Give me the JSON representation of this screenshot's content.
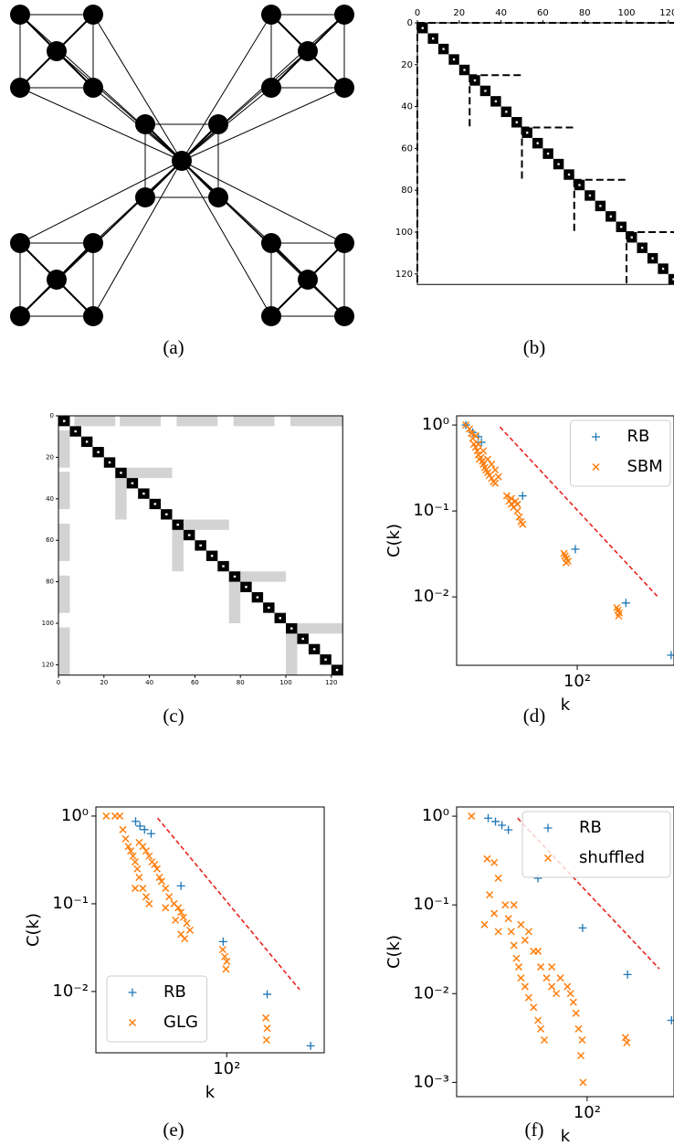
{
  "captions": [
    "(a)",
    "(b)",
    "(c)",
    "(d)",
    "(e)",
    "(f)"
  ],
  "chart_data": [
    {
      "type": "matrix",
      "tick_side": "top",
      "xlim": [
        0,
        125
      ],
      "ylim": [
        0,
        125
      ],
      "xticks": [
        0,
        20,
        40,
        60,
        80,
        100,
        120
      ],
      "yticks": [
        0,
        20,
        40,
        60,
        80,
        100,
        120
      ],
      "block_style": "dashed"
    },
    {
      "type": "matrix",
      "tick_side": "bottom",
      "xlim": [
        0,
        125
      ],
      "ylim": [
        0,
        125
      ],
      "xticks": [
        0,
        20,
        40,
        60,
        80,
        100,
        120
      ],
      "yticks": [
        0,
        20,
        40,
        60,
        80,
        100,
        120
      ],
      "block_style": "gray"
    },
    {
      "type": "scatter",
      "log_x": true,
      "log_y": true,
      "x_label": "k",
      "y_label": "C(k)",
      "legend": "upper right",
      "xlim": [
        3.9,
        1350
      ],
      "ylim": [
        0.0016,
        1.28
      ],
      "xticks": [
        {
          "value": 100,
          "label": "10²"
        }
      ],
      "yticks": [
        {
          "value": 1,
          "label": "10⁰"
        },
        {
          "value": 0.1,
          "label": "10⁻¹"
        },
        {
          "value": 0.01,
          "label": "10⁻²"
        }
      ],
      "reference_line": {
        "color": "#e8231d",
        "x": [
          12.5,
          860
        ],
        "values": [
          0.95,
          0.0102
        ]
      },
      "series": [
        {
          "name": "RB",
          "color": "#1f77b4",
          "marker": "plus",
          "x": [
            5,
            6,
            7,
            7.6,
            23,
            95,
            370,
            1250
          ],
          "values": [
            1,
            0.82,
            0.73,
            0.63,
            0.15,
            0.036,
            0.0085,
            0.0021
          ]
        },
        {
          "name": "SBM",
          "color": "#ff7f0e",
          "marker": "x",
          "x": [
            5,
            5.5,
            5.8,
            6,
            6.2,
            6.5,
            6.8,
            7,
            7.2,
            7.5,
            7.8,
            8,
            8.3,
            8.6,
            9,
            9.4,
            10,
            10.5,
            11,
            7,
            8,
            9,
            10,
            11,
            12,
            6.5,
            15,
            16,
            17,
            18,
            19,
            20,
            21,
            22,
            23,
            17,
            20,
            70,
            72,
            75,
            78,
            74,
            290,
            300,
            310,
            305
          ],
          "values": [
            1,
            0.9,
            0.8,
            0.7,
            0.6,
            0.55,
            0.5,
            0.45,
            0.4,
            0.42,
            0.38,
            0.35,
            0.32,
            0.3,
            0.28,
            0.26,
            0.24,
            0.22,
            0.21,
            0.6,
            0.5,
            0.4,
            0.35,
            0.3,
            0.25,
            0.75,
            0.15,
            0.13,
            0.12,
            0.11,
            0.13,
            0.1,
            0.085,
            0.075,
            0.07,
            0.14,
            0.12,
            0.032,
            0.03,
            0.028,
            0.026,
            0.025,
            0.0075,
            0.007,
            0.0065,
            0.006
          ]
        }
      ]
    },
    {
      "type": "scatter",
      "log_x": true,
      "log_y": true,
      "x_label": "k",
      "y_label": "C(k)",
      "legend": "lower left",
      "xlim": [
        3.2,
        1300
      ],
      "ylim": [
        0.002,
        1.27
      ],
      "xticks": [
        {
          "value": 100,
          "label": "10²"
        }
      ],
      "yticks": [
        {
          "value": 1,
          "label": "10⁰"
        },
        {
          "value": 0.1,
          "label": "10⁻¹"
        },
        {
          "value": 0.01,
          "label": "10⁻²"
        }
      ],
      "reference_line": {
        "color": "#e8231d",
        "x": [
          16.2,
          680
        ],
        "values": [
          0.95,
          0.0105
        ]
      },
      "series": [
        {
          "name": "RB",
          "color": "#1f77b4",
          "marker": "plus",
          "x": [
            9.1,
            10.2,
            11.5,
            13.7,
            30,
            91,
            290,
            910
          ],
          "values": [
            0.87,
            0.77,
            0.7,
            0.63,
            0.16,
            0.037,
            0.0093,
            0.0024
          ]
        },
        {
          "name": "GLG",
          "color": "#ff7f0e",
          "marker": "x",
          "x": [
            4.2,
            5.3,
            6,
            6.5,
            7,
            7.5,
            8,
            8.5,
            9,
            9.5,
            10,
            10,
            11,
            12,
            13,
            14,
            15,
            16,
            17,
            18,
            11,
            12,
            13,
            9,
            20,
            22,
            25,
            28,
            30,
            32,
            35,
            38,
            26,
            30,
            33,
            20,
            90,
            95,
            100,
            98,
            280,
            290,
            285
          ],
          "values": [
            1,
            1,
            1,
            0.7,
            0.55,
            0.45,
            0.4,
            0.35,
            0.3,
            0.25,
            0.2,
            0.5,
            0.45,
            0.4,
            0.35,
            0.3,
            0.28,
            0.25,
            0.2,
            0.18,
            0.15,
            0.12,
            0.1,
            0.15,
            0.15,
            0.12,
            0.1,
            0.09,
            0.08,
            0.07,
            0.06,
            0.05,
            0.065,
            0.045,
            0.04,
            0.09,
            0.03,
            0.025,
            0.022,
            0.018,
            0.005,
            0.0038,
            0.0028
          ]
        }
      ]
    },
    {
      "type": "scatter",
      "log_x": true,
      "log_y": true,
      "x_label": "k",
      "y_label": "C(k)",
      "legend": "upper right",
      "xlim": [
        3.4,
        950
      ],
      "ylim": [
        0.00069,
        1.27
      ],
      "xticks": [
        {
          "value": 100,
          "label": "10²"
        }
      ],
      "yticks": [
        {
          "value": 1,
          "label": "10⁰"
        },
        {
          "value": 0.1,
          "label": "10⁻¹"
        },
        {
          "value": 0.01,
          "label": "10⁻²"
        },
        {
          "value": 0.001,
          "label": "10⁻³"
        }
      ],
      "reference_line": {
        "color": "#e8231d",
        "x": [
          16.5,
          650
        ],
        "values": [
          0.95,
          0.019
        ]
      },
      "series": [
        {
          "name": "RB",
          "color": "#1f77b4",
          "marker": "plus",
          "x": [
            7.7,
            9.3,
            11,
            13,
            28,
            89,
            285,
            890
          ],
          "values": [
            0.95,
            0.87,
            0.79,
            0.7,
            0.2,
            0.055,
            0.0164,
            0.005
          ]
        },
        {
          "name": "shuffled",
          "color": "#ff7f0e",
          "marker": "x",
          "x": [
            5,
            7.5,
            9,
            10,
            8,
            7,
            9,
            10,
            12,
            13,
            14,
            15,
            16,
            17,
            18,
            20,
            22,
            25,
            28,
            30,
            33,
            15,
            18,
            20,
            25,
            30,
            35,
            40,
            45,
            22,
            28,
            40,
            50,
            60,
            65,
            70,
            75,
            80,
            85,
            90,
            88,
            270,
            280
          ],
          "values": [
            1,
            0.33,
            0.3,
            0.2,
            0.13,
            0.06,
            0.08,
            0.05,
            0.1,
            0.07,
            0.05,
            0.035,
            0.025,
            0.02,
            0.015,
            0.012,
            0.009,
            0.007,
            0.005,
            0.004,
            0.003,
            0.1,
            0.06,
            0.04,
            0.03,
            0.02,
            0.015,
            0.012,
            0.01,
            0.05,
            0.03,
            0.02,
            0.015,
            0.012,
            0.01,
            0.008,
            0.006,
            0.004,
            0.002,
            0.001,
            0.003,
            0.0032,
            0.0028
          ]
        }
      ]
    }
  ]
}
